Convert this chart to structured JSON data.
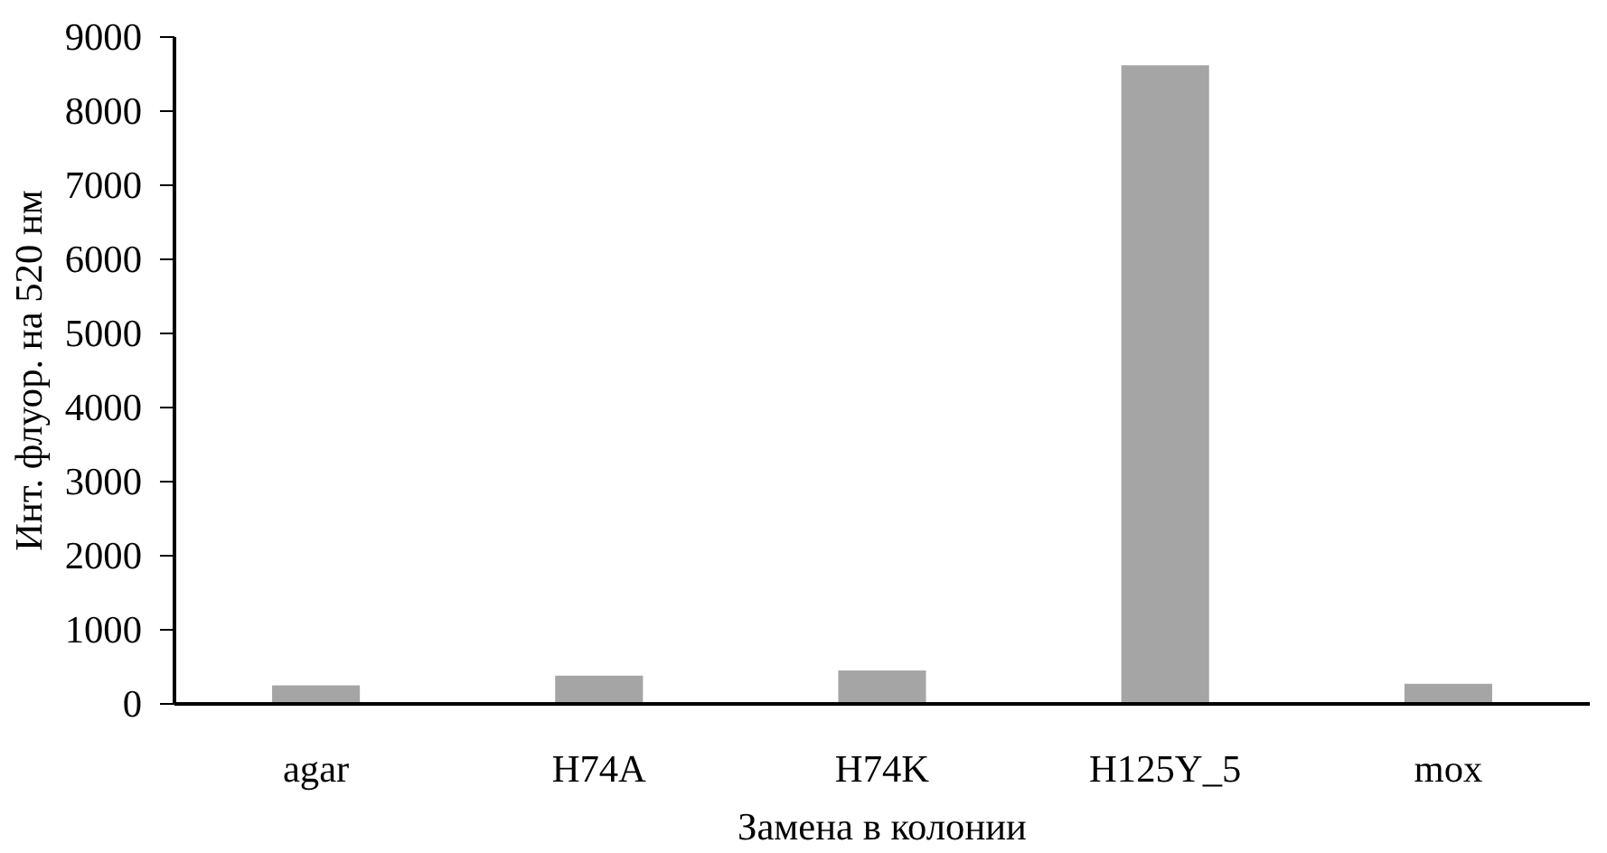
{
  "chart_data": {
    "type": "bar",
    "xlabel": "Замена в колонии",
    "ylabel": "Инт. флуор. на 520 нм",
    "categories": [
      "agar",
      "H74A",
      "H74K",
      "H125Y_5",
      "mox"
    ],
    "values": [
      250,
      380,
      450,
      8620,
      270
    ],
    "color": "#a5a5a5",
    "ylim": [
      0,
      9000
    ],
    "yticks": [
      0,
      1000,
      2000,
      3000,
      4000,
      5000,
      6000,
      7000,
      8000,
      9000
    ],
    "grid": false
  }
}
